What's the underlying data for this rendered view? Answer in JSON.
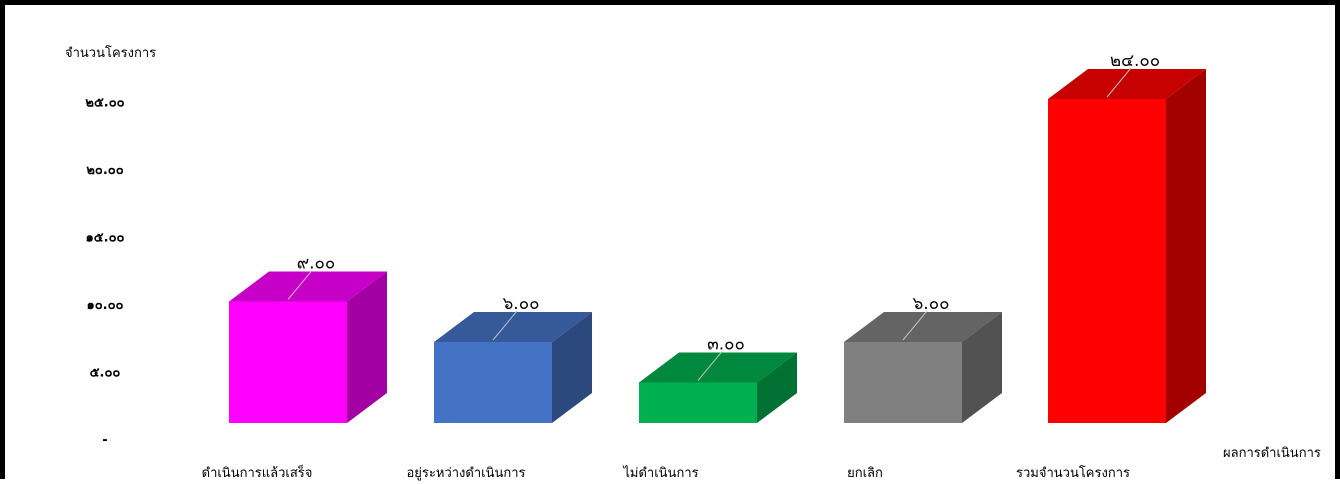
{
  "chart_data": {
    "type": "bar",
    "title": "",
    "ylabel": "จำนวนโครงการ",
    "xlabel": "ผลการดำเนินการ",
    "categories": [
      "ดำเนินการแล้วเสร็จ",
      "อยู่ระหว่างดำเนินการ",
      "ไม่ดำเนินการ",
      "ยกเลิก",
      "รวมจำนวนโครงการ"
    ],
    "values": [
      9,
      6,
      3,
      6,
      24
    ],
    "value_labels": [
      "๙.๐๐",
      "๖.๐๐",
      "๓.๐๐",
      "๖.๐๐",
      "๒๔.๐๐"
    ],
    "colors": [
      "#ff00ff",
      "#4472c4",
      "#00b050",
      "#808080",
      "#ff0000"
    ],
    "ylim": [
      0,
      25
    ],
    "yticks": [
      0,
      5,
      10,
      15,
      20,
      25
    ],
    "ytick_labels": [
      "-",
      "๕.๐๐",
      "๑๐.๐๐",
      "๑๕.๐๐",
      "๒๐.๐๐",
      "๒๕.๐๐"
    ],
    "grid": false,
    "legend": "none",
    "style": "3d-column"
  }
}
